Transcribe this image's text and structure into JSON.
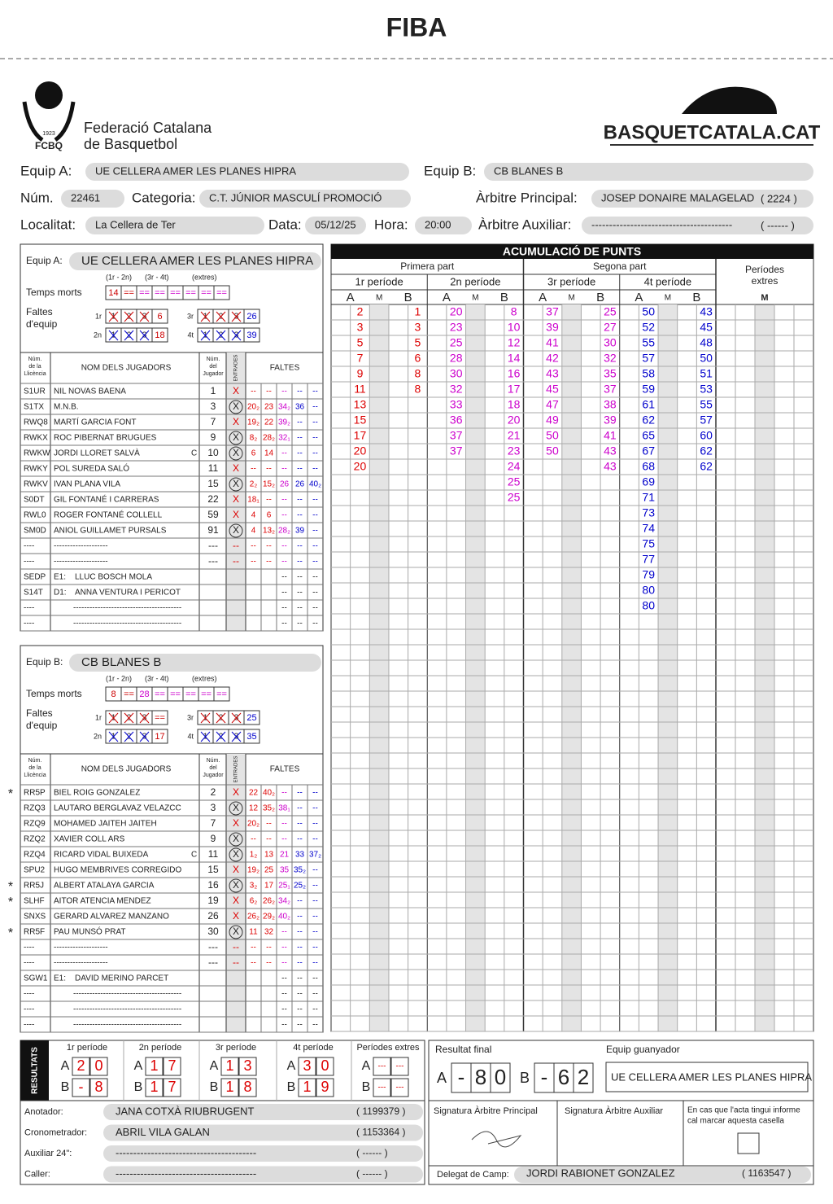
{
  "header": {
    "title": "FIBA",
    "logo_year": "1923",
    "logo_abbr": "FCBQ",
    "federation": [
      "Federació Catalana",
      "de Basquetbol"
    ],
    "brand": "BASQUETCATALA.CAT"
  },
  "game": {
    "equip_a": {
      "label": "Equip A:",
      "value": "UE CELLERA AMER LES PLANES HIPRA"
    },
    "equip_b": {
      "label": "Equip B:",
      "value": "CB BLANES B"
    },
    "num": {
      "label": "Núm.",
      "value": "22461"
    },
    "categoria": {
      "label": "Categoria:",
      "value": "C.T. JÚNIOR MASCULÍ PROMOCIÓ"
    },
    "arbitre_principal": {
      "label": "Àrbitre Principal:",
      "value": "JOSEP DONAIRE MALAGELAD",
      "code": "( 2224 )"
    },
    "localitat": {
      "label": "Localitat:",
      "value": "La Cellera de Ter"
    },
    "data": {
      "label": "Data:",
      "value": "05/12/25"
    },
    "hora": {
      "label": "Hora:",
      "value": "20:00"
    },
    "arbitre_auxiliar": {
      "label": "Àrbitre Auxiliar:",
      "value": "----------------------------------------",
      "code": "( ------ )"
    }
  },
  "team_a": {
    "label": "Equip A:",
    "name": "UE CELLERA AMER LES PLANES HIPRA",
    "timeout_heads": [
      "(1r - 2n)",
      "(3r - 4t)",
      "(extres)"
    ],
    "timeouts_label": "Temps morts",
    "timeouts": [
      "14",
      "==",
      "==",
      "==",
      "==",
      "==",
      "==",
      "=="
    ],
    "fouls_label": [
      "Faltes",
      "d'equip"
    ],
    "team_fouls": [
      {
        "period": "1r",
        "boxes": [
          "1",
          "2",
          "3"
        ],
        "total": "6"
      },
      {
        "period": "2n",
        "boxes": [
          "1",
          "2",
          "3"
        ],
        "total": "18"
      },
      {
        "period": "3r",
        "boxes": [
          "1",
          "2",
          "3"
        ],
        "total": "26"
      },
      {
        "period": "4t",
        "boxes": [
          "1",
          "2",
          "3"
        ],
        "total": "39"
      }
    ],
    "headers": {
      "license": [
        "Núm.",
        "de la",
        "Llicència"
      ],
      "name": "NOM DELS JUGADORS",
      "number": [
        "Núm.",
        "del",
        "Jugador"
      ],
      "entries": "ENTRADES",
      "fouls": "FALTES"
    },
    "players": [
      {
        "license": "S1UR",
        "name": "NIL NOVAS BAENA",
        "number": "1",
        "entry": "X",
        "circled": false,
        "fouls": [
          "--",
          "--",
          "--",
          "--",
          "--"
        ]
      },
      {
        "license": "S1TX",
        "name": "M.N.B.",
        "number": "3",
        "entry": "X",
        "circled": true,
        "fouls": [
          "20₂",
          "23",
          "34₂",
          "36",
          "--"
        ]
      },
      {
        "license": "RWQ8",
        "name": "MARTÍ GARCIA FONT",
        "number": "7",
        "entry": "X",
        "circled": false,
        "fouls": [
          "19₂",
          "22",
          "39₂",
          "--",
          "--"
        ]
      },
      {
        "license": "RWKX",
        "name": "ROC PIBERNAT BRUGUES",
        "number": "9",
        "entry": "X",
        "circled": true,
        "fouls": [
          "8₂",
          "28₂",
          "32₁",
          "--",
          "--"
        ]
      },
      {
        "license": "RWKW",
        "name": "JORDI LLORET SALVÀ",
        "captain": "C",
        "number": "10",
        "entry": "X",
        "circled": true,
        "fouls": [
          "6",
          "14",
          "--",
          "--",
          "--"
        ]
      },
      {
        "license": "RWKY",
        "name": "POL SUREDA SALÓ",
        "number": "11",
        "entry": "X",
        "circled": false,
        "fouls": [
          "--",
          "--",
          "--",
          "--",
          "--"
        ]
      },
      {
        "license": "RWKV",
        "name": "IVAN PLANA VILA",
        "number": "15",
        "entry": "X",
        "circled": true,
        "fouls": [
          "2₂",
          "15₂",
          "26",
          "26",
          "40₂"
        ]
      },
      {
        "license": "S0DT",
        "name": "GIL FONTANÉ I CARRERAS",
        "number": "22",
        "entry": "X",
        "circled": false,
        "fouls": [
          "18₁",
          "--",
          "--",
          "--",
          "--"
        ]
      },
      {
        "license": "RWL0",
        "name": "ROGER FONTANÉ COLLELL",
        "number": "59",
        "entry": "X",
        "circled": false,
        "fouls": [
          "4",
          "6",
          "--",
          "--",
          "--"
        ]
      },
      {
        "license": "SM0D",
        "name": "ANIOL GUILLAMET PURSALS",
        "number": "91",
        "entry": "X",
        "circled": true,
        "fouls": [
          "4",
          "13₂",
          "28₂",
          "39",
          "--"
        ]
      },
      {
        "license": "----",
        "name": "--------------------",
        "number": "---",
        "entry": "--",
        "circled": false,
        "fouls": [
          "--",
          "--",
          "--",
          "--",
          "--"
        ]
      },
      {
        "license": "----",
        "name": "--------------------",
        "number": "---",
        "entry": "--",
        "circled": false,
        "fouls": [
          "--",
          "--",
          "--",
          "--",
          "--"
        ]
      }
    ],
    "coaches": [
      {
        "license": "SEDP",
        "role": "E1:",
        "name": "LLUC BOSCH MOLA",
        "fouls": [
          "--",
          "--",
          "--"
        ]
      },
      {
        "license": "S14T",
        "role": "D1:",
        "name": "ANNA VENTURA I PERICOT",
        "fouls": [
          "--",
          "--",
          "--"
        ]
      },
      {
        "license": "----",
        "name": "----------------------------------------",
        "fouls": [
          "--",
          "--",
          "--"
        ]
      },
      {
        "license": "----",
        "name": "----------------------------------------",
        "fouls": [
          "--",
          "--",
          "--"
        ]
      }
    ]
  },
  "team_b": {
    "label": "Equip B:",
    "name": "CB BLANES B",
    "timeout_heads": [
      "(1r - 2n)",
      "(3r - 4t)",
      "(extres)"
    ],
    "timeouts_label": "Temps morts",
    "timeouts": [
      "8",
      "==",
      "28",
      "==",
      "==",
      "==",
      "==",
      "=="
    ],
    "fouls_label": [
      "Faltes",
      "d'equip"
    ],
    "team_fouls": [
      {
        "period": "1r",
        "boxes": [
          "1",
          "2",
          "3"
        ],
        "total": "=="
      },
      {
        "period": "2n",
        "boxes": [
          "1",
          "2",
          "3"
        ],
        "total": "17"
      },
      {
        "period": "3r",
        "boxes": [
          "1",
          "2",
          "3"
        ],
        "total": "25"
      },
      {
        "period": "4t",
        "boxes": [
          "1",
          "2",
          "3"
        ],
        "total": "35"
      }
    ],
    "headers": {
      "license": [
        "Núm.",
        "de la",
        "Llicència"
      ],
      "name": "NOM DELS JUGADORS",
      "number": [
        "Núm.",
        "del",
        "Jugador"
      ],
      "entries": "ENTRADES",
      "fouls": "FALTES"
    },
    "players": [
      {
        "mark": "*",
        "license": "RR5P",
        "name": "BIEL ROIG GONZALEZ",
        "number": "2",
        "entry": "X",
        "circled": false,
        "fouls": [
          "22",
          "40₂",
          "--",
          "--",
          "--"
        ]
      },
      {
        "license": "RZQ3",
        "name": "LAUTARO BERGLAVAZ VELAZCC",
        "number": "3",
        "entry": "X",
        "circled": true,
        "fouls": [
          "12",
          "35₂",
          "38₁",
          "--",
          "--"
        ]
      },
      {
        "license": "RZQ9",
        "name": "MOHAMED JAITEH JAITEH",
        "number": "7",
        "entry": "X",
        "circled": false,
        "fouls": [
          "20₂",
          "--",
          "--",
          "--",
          "--"
        ]
      },
      {
        "license": "RZQ2",
        "name": "XAVIER COLL ARS",
        "number": "9",
        "entry": "X",
        "circled": true,
        "fouls": [
          "--",
          "--",
          "--",
          "--",
          "--"
        ]
      },
      {
        "license": "RZQ4",
        "name": "RICARD VIDAL BUIXEDA",
        "captain": "C",
        "number": "11",
        "entry": "X",
        "circled": true,
        "fouls": [
          "1₂",
          "13",
          "21",
          "33",
          "37₂"
        ]
      },
      {
        "license": "SPU2",
        "name": "HUGO MEMBRIVES CORREGIDO",
        "number": "15",
        "entry": "X",
        "circled": false,
        "fouls": [
          "19₂",
          "25",
          "35",
          "35₂",
          "--"
        ]
      },
      {
        "mark": "*",
        "license": "RR5J",
        "name": "ALBERT ATALAYA GARCIA",
        "number": "16",
        "entry": "X",
        "circled": true,
        "fouls": [
          "3₂",
          "17",
          "25₁",
          "25₂",
          "--"
        ]
      },
      {
        "mark": "*",
        "license": "SLHF",
        "name": "AITOR ATENCIA MENDEZ",
        "number": "19",
        "entry": "X",
        "circled": false,
        "fouls": [
          "6₂",
          "26₂",
          "34₂",
          "--",
          "--"
        ]
      },
      {
        "license": "SNXS",
        "name": "GERARD ALVAREZ MANZANO",
        "number": "26",
        "entry": "X",
        "circled": false,
        "fouls": [
          "26₂",
          "29₂",
          "40₂",
          "--",
          "--"
        ]
      },
      {
        "mark": "*",
        "license": "RR5F",
        "name": "PAU MUNSÓ PRAT",
        "number": "30",
        "entry": "X",
        "circled": true,
        "fouls": [
          "11",
          "32",
          "--",
          "--",
          "--"
        ]
      },
      {
        "license": "----",
        "name": "--------------------",
        "number": "---",
        "entry": "--",
        "circled": false,
        "fouls": [
          "--",
          "--",
          "--",
          "--",
          "--"
        ]
      },
      {
        "license": "----",
        "name": "--------------------",
        "number": "---",
        "entry": "--",
        "circled": false,
        "fouls": [
          "--",
          "--",
          "--",
          "--",
          "--"
        ]
      }
    ],
    "coaches": [
      {
        "license": "SGW1",
        "role": "E1:",
        "name": "DAVID MERINO PARCET",
        "fouls": [
          "--",
          "--",
          "--"
        ]
      },
      {
        "license": "----",
        "name": "----------------------------------------",
        "fouls": [
          "--",
          "--",
          "--"
        ]
      },
      {
        "license": "----",
        "name": "----------------------------------------",
        "fouls": [
          "--",
          "--",
          "--"
        ]
      },
      {
        "license": "----",
        "name": "----------------------------------------",
        "fouls": [
          "--",
          "--",
          "--"
        ]
      }
    ]
  },
  "running_score": {
    "title": "ACUMULACIÓ DE PUNTS",
    "halves": [
      "Primera part",
      "Segona part"
    ],
    "extra": [
      "Períodes",
      "extres"
    ],
    "extra_head": "M",
    "periods": [
      {
        "name": "1r període",
        "heads": [
          "A",
          "M",
          "B"
        ],
        "A": [
          "2",
          "3",
          "5",
          "7",
          "9",
          "11",
          "13",
          "15",
          "17",
          "20",
          "20"
        ],
        "B": [
          "1",
          "3",
          "5",
          "6",
          "8",
          "8"
        ]
      },
      {
        "name": "2n període",
        "heads": [
          "A",
          "M",
          "B"
        ],
        "A": [
          "20",
          "23",
          "25",
          "28",
          "30",
          "32",
          "33",
          "36",
          "37",
          "37"
        ],
        "B": [
          "8",
          "10",
          "12",
          "14",
          "16",
          "17",
          "18",
          "20",
          "21",
          "23",
          "24",
          "25",
          "25"
        ]
      },
      {
        "name": "3r període",
        "heads": [
          "A",
          "M",
          "B"
        ],
        "A": [
          "37",
          "39",
          "41",
          "42",
          "43",
          "45",
          "47",
          "49",
          "50",
          "50"
        ],
        "B": [
          "25",
          "27",
          "30",
          "32",
          "35",
          "37",
          "38",
          "39",
          "41",
          "43",
          "43"
        ]
      },
      {
        "name": "4t període",
        "heads": [
          "A",
          "M",
          "B"
        ],
        "A": [
          "50",
          "52",
          "55",
          "57",
          "58",
          "59",
          "61",
          "62",
          "65",
          "67",
          "68",
          "69",
          "71",
          "73",
          "74",
          "75",
          "77",
          "79",
          "80",
          "80"
        ],
        "B": [
          "43",
          "45",
          "48",
          "50",
          "51",
          "53",
          "55",
          "57",
          "60",
          "62",
          "62"
        ]
      }
    ]
  },
  "results": {
    "label": "RESULTATS",
    "team_letters": [
      "A",
      "B"
    ],
    "periods": [
      {
        "name": "1r període",
        "A": [
          "2",
          "0"
        ],
        "B": [
          "-",
          "8"
        ]
      },
      {
        "name": "2n període",
        "A": [
          "1",
          "7"
        ],
        "B": [
          "1",
          "7"
        ]
      },
      {
        "name": "3r període",
        "A": [
          "1",
          "3"
        ],
        "B": [
          "1",
          "8"
        ]
      },
      {
        "name": "4t període",
        "A": [
          "3",
          "0"
        ],
        "B": [
          "1",
          "9"
        ]
      },
      {
        "name": "Períodes extres",
        "A": [
          "---",
          "---"
        ],
        "B": [
          "---",
          "---"
        ]
      }
    ],
    "final_label": "Resultat final",
    "final_A": [
      "-",
      "8",
      "0"
    ],
    "final_B": [
      "-",
      "6",
      "2"
    ],
    "winner_label": "Equip guanyador",
    "winner": "UE CELLERA AMER LES PLANES HIPRA"
  },
  "officials": [
    {
      "label": "Anotador:",
      "name": "JANA COTXÀ RIUBRUGENT",
      "code": "( 1199379 )"
    },
    {
      "label": "Cronometrador:",
      "name": "ABRIL VILA GALAN",
      "code": "( 1153364 )"
    },
    {
      "label": "Auxiliar 24\":",
      "name": "----------------------------------------",
      "code": "( ------ )"
    },
    {
      "label": "Caller:",
      "name": "----------------------------------------",
      "code": "( ------ )"
    }
  ],
  "signatures": {
    "principal": "Signatura Àrbitre Principal",
    "auxiliar": "Signatura Àrbitre Auxiliar",
    "report": [
      "En cas que l'acta tingui informe",
      "cal marcar aquesta casella"
    ]
  },
  "delegat": {
    "label": "Delegat de Camp:",
    "name": "JORDI RABIONET GONZALEZ",
    "code": "( 1163547 )"
  }
}
